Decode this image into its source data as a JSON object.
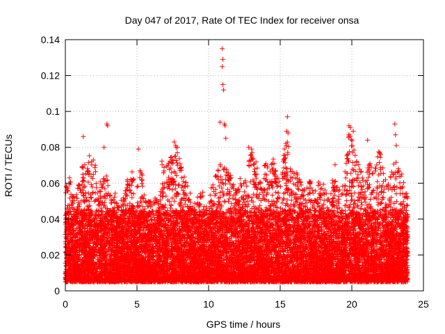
{
  "chart_data": {
    "type": "scatter",
    "title": "Day 047 of 2017, Rate Of TEC Index for receiver onsa",
    "xlabel": "GPS time / hours",
    "ylabel": "ROTI / TECUs",
    "xlim": [
      0,
      25
    ],
    "ylim": [
      0,
      0.14
    ],
    "xticks": [
      "0",
      "5",
      "10",
      "15",
      "20",
      "25"
    ],
    "yticks": [
      "0",
      "0.02",
      "0.04",
      "0.06",
      "0.08",
      "0.1",
      "0.12",
      "0.14"
    ],
    "grid": true,
    "marker": "+",
    "color": "#ff0000",
    "points_x_range": [
      0,
      23.9
    ],
    "background_y_range": [
      0.005,
      0.045
    ],
    "envelope": [
      [
        0.0,
        0.055
      ],
      [
        0.25,
        0.07
      ],
      [
        0.5,
        0.052
      ],
      [
        0.75,
        0.058
      ],
      [
        1.0,
        0.06
      ],
      [
        1.25,
        0.075
      ],
      [
        1.5,
        0.07
      ],
      [
        1.75,
        0.08
      ],
      [
        2.0,
        0.077
      ],
      [
        2.25,
        0.065
      ],
      [
        2.5,
        0.06
      ],
      [
        2.75,
        0.065
      ],
      [
        3.0,
        0.065
      ],
      [
        3.25,
        0.05
      ],
      [
        3.5,
        0.055
      ],
      [
        3.75,
        0.05
      ],
      [
        4.0,
        0.055
      ],
      [
        4.25,
        0.06
      ],
      [
        4.5,
        0.07
      ],
      [
        4.75,
        0.065
      ],
      [
        5.0,
        0.06
      ],
      [
        5.25,
        0.075
      ],
      [
        5.5,
        0.055
      ],
      [
        5.75,
        0.05
      ],
      [
        6.0,
        0.05
      ],
      [
        6.25,
        0.055
      ],
      [
        6.5,
        0.05
      ],
      [
        6.75,
        0.075
      ],
      [
        7.0,
        0.07
      ],
      [
        7.25,
        0.072
      ],
      [
        7.5,
        0.078
      ],
      [
        7.75,
        0.082
      ],
      [
        8.0,
        0.075
      ],
      [
        8.25,
        0.065
      ],
      [
        8.5,
        0.06
      ],
      [
        8.75,
        0.055
      ],
      [
        9.0,
        0.05
      ],
      [
        9.25,
        0.055
      ],
      [
        9.5,
        0.06
      ],
      [
        9.75,
        0.045
      ],
      [
        10.0,
        0.05
      ],
      [
        10.25,
        0.06
      ],
      [
        10.5,
        0.065
      ],
      [
        10.75,
        0.072
      ],
      [
        11.0,
        0.07
      ],
      [
        11.25,
        0.068
      ],
      [
        11.5,
        0.065
      ],
      [
        11.75,
        0.06
      ],
      [
        12.0,
        0.055
      ],
      [
        12.25,
        0.065
      ],
      [
        12.5,
        0.06
      ],
      [
        12.75,
        0.07
      ],
      [
        13.0,
        0.078
      ],
      [
        13.25,
        0.074
      ],
      [
        13.5,
        0.065
      ],
      [
        13.75,
        0.06
      ],
      [
        14.0,
        0.075
      ],
      [
        14.25,
        0.065
      ],
      [
        14.5,
        0.075
      ],
      [
        14.75,
        0.065
      ],
      [
        15.0,
        0.06
      ],
      [
        15.25,
        0.08
      ],
      [
        15.5,
        0.085
      ],
      [
        15.75,
        0.07
      ],
      [
        16.0,
        0.065
      ],
      [
        16.25,
        0.068
      ],
      [
        16.5,
        0.06
      ],
      [
        16.75,
        0.055
      ],
      [
        17.0,
        0.065
      ],
      [
        17.25,
        0.06
      ],
      [
        17.5,
        0.055
      ],
      [
        17.75,
        0.065
      ],
      [
        18.0,
        0.06
      ],
      [
        18.25,
        0.055
      ],
      [
        18.5,
        0.05
      ],
      [
        18.75,
        0.075
      ],
      [
        19.0,
        0.06
      ],
      [
        19.25,
        0.055
      ],
      [
        19.5,
        0.065
      ],
      [
        19.75,
        0.09
      ],
      [
        20.0,
        0.085
      ],
      [
        20.25,
        0.075
      ],
      [
        20.5,
        0.07
      ],
      [
        20.75,
        0.065
      ],
      [
        21.0,
        0.07
      ],
      [
        21.25,
        0.075
      ],
      [
        21.5,
        0.065
      ],
      [
        21.75,
        0.075
      ],
      [
        22.0,
        0.08
      ],
      [
        22.25,
        0.065
      ],
      [
        22.5,
        0.06
      ],
      [
        22.75,
        0.065
      ],
      [
        23.0,
        0.078
      ],
      [
        23.25,
        0.07
      ],
      [
        23.5,
        0.068
      ],
      [
        23.75,
        0.06
      ],
      [
        23.9,
        0.055
      ]
    ],
    "outliers": [
      [
        1.25,
        0.086
      ],
      [
        2.9,
        0.093
      ],
      [
        2.95,
        0.092
      ],
      [
        2.7,
        0.08
      ],
      [
        5.1,
        0.079
      ],
      [
        7.6,
        0.083
      ],
      [
        7.7,
        0.081
      ],
      [
        10.8,
        0.094
      ],
      [
        10.95,
        0.135
      ],
      [
        11.0,
        0.129
      ],
      [
        10.95,
        0.125
      ],
      [
        11.0,
        0.115
      ],
      [
        11.05,
        0.112
      ],
      [
        11.1,
        0.093
      ],
      [
        11.15,
        0.092
      ],
      [
        11.2,
        0.085
      ],
      [
        12.8,
        0.08
      ],
      [
        13.0,
        0.079
      ],
      [
        15.5,
        0.097
      ],
      [
        15.45,
        0.089
      ],
      [
        15.55,
        0.088
      ],
      [
        15.4,
        0.082
      ],
      [
        19.8,
        0.092
      ],
      [
        19.9,
        0.091
      ],
      [
        20.1,
        0.089
      ],
      [
        21.1,
        0.084
      ],
      [
        23.0,
        0.093
      ],
      [
        23.05,
        0.087
      ],
      [
        23.1,
        0.081
      ]
    ]
  }
}
